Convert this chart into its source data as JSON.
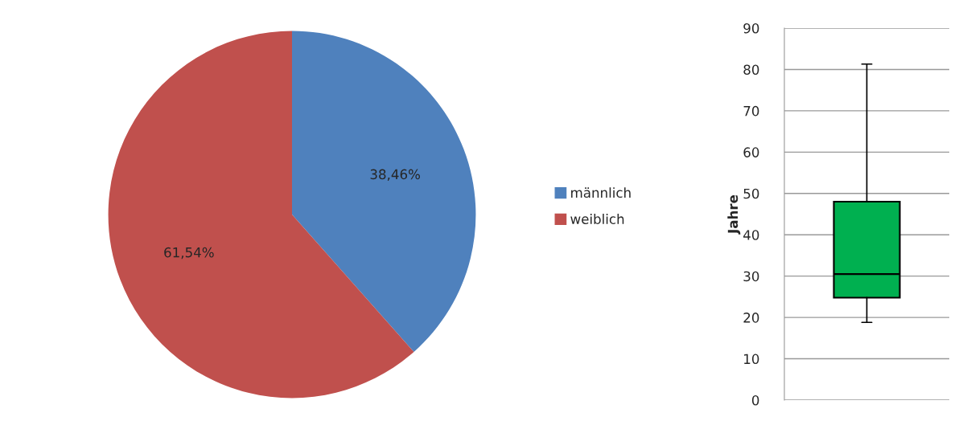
{
  "chart_data": [
    {
      "type": "pie",
      "categories": [
        "männlich",
        "weiblich"
      ],
      "values": [
        38.46,
        61.54
      ],
      "colors": [
        "#4f81bd",
        "#c0504d"
      ],
      "value_labels": [
        "38,46%",
        "61,54%"
      ],
      "legend": "right"
    },
    {
      "type": "box",
      "categories": [
        null
      ],
      "ylabel": "Jahre",
      "ylim": [
        0,
        90
      ],
      "yticks": [
        0,
        10,
        20,
        30,
        40,
        50,
        60,
        70,
        80,
        90
      ],
      "grid": "y",
      "color": "#00b050",
      "boxes": [
        {
          "low": 18.8,
          "q1": 24.8,
          "median": 30.5,
          "q3": 48.0,
          "high": 81.3
        }
      ]
    }
  ]
}
